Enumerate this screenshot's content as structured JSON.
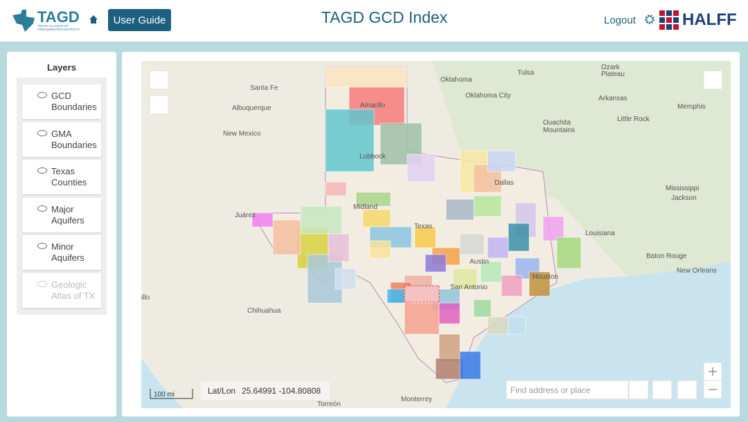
{
  "header": {
    "logo_text": "TAGD",
    "logo_subtitle": "TEXAS ALLIANCE OF GROUNDWATER DISTRICTS",
    "user_guide": "User Guide",
    "title": "TAGD GCD Index",
    "logout": "Logout",
    "brand": "HALFF"
  },
  "layers": {
    "title": "Layers",
    "items": [
      {
        "label": "GCD Boundaries",
        "enabled": true
      },
      {
        "label": "GMA Boundaries",
        "enabled": true
      },
      {
        "label": "Texas Counties",
        "enabled": true
      },
      {
        "label": "Major Aquifers",
        "enabled": true
      },
      {
        "label": "Minor Aquifers",
        "enabled": true
      },
      {
        "label": "Geologic Atlas of TX",
        "enabled": false
      }
    ]
  },
  "map": {
    "labels": [
      "Oklahoma",
      "Tulsa",
      "Ozark",
      "Plateau",
      "Santa Fe",
      "Albuquerque",
      "New Mexico",
      "Amarillo",
      "Lubbock",
      "Oklahoma City",
      "Arkansas",
      "Memphis",
      "Ouachita",
      "Mountains",
      "Little Rock",
      "Dallas",
      "Mississippi",
      "Jackson",
      "Midland",
      "Juárez",
      "Texas",
      "Louisiana",
      "Austin",
      "Baton Rouge",
      "New Orleans",
      "Houston",
      "San Antonio",
      "Chihuahua",
      "Monterrey",
      "Torreón",
      "illo"
    ],
    "coords_label": "Lat/Lon",
    "coords": "25.64991 -104.80808",
    "scale": "100 mi",
    "search_placeholder": "Find address or place"
  }
}
